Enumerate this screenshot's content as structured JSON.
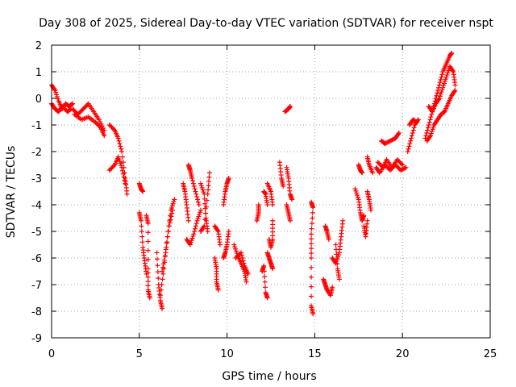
{
  "chart_data": {
    "type": "scatter",
    "title": "Day 308 of 2025, Sidereal Day-to-day VTEC variation (SDTVAR) for receiver nspt",
    "xlabel": "GPS time / hours",
    "ylabel": "SDTVAR / TECUs",
    "xlim": [
      0,
      25
    ],
    "ylim": [
      -9,
      2
    ],
    "xticks": [
      0,
      5,
      10,
      15,
      20,
      25
    ],
    "yticks": [
      -9,
      -8,
      -7,
      -6,
      -5,
      -4,
      -3,
      -2,
      -1,
      0,
      1,
      2
    ],
    "grid": true,
    "marker": "+",
    "color": "#ff0000",
    "series": [
      {
        "name": "SDTVAR",
        "segments": [
          [
            [
              0.0,
              0.5
            ],
            [
              0.2,
              0.3
            ],
            [
              0.4,
              -0.1
            ],
            [
              0.6,
              -0.4
            ],
            [
              0.8,
              -0.2
            ],
            [
              1.0,
              -0.3
            ],
            [
              1.2,
              -0.2
            ]
          ],
          [
            [
              0.0,
              -0.2
            ],
            [
              0.2,
              -0.4
            ],
            [
              0.4,
              -0.5
            ],
            [
              0.6,
              -0.3
            ],
            [
              0.9,
              -0.5
            ],
            [
              1.1,
              -0.4
            ]
          ],
          [
            [
              1.2,
              -0.4
            ],
            [
              1.5,
              -0.6
            ],
            [
              1.8,
              -0.4
            ],
            [
              2.1,
              -0.2
            ],
            [
              2.4,
              -0.5
            ],
            [
              2.7,
              -0.8
            ],
            [
              3.0,
              -1.2
            ]
          ],
          [
            [
              1.3,
              -0.6
            ],
            [
              1.7,
              -0.8
            ],
            [
              2.1,
              -0.7
            ],
            [
              2.5,
              -0.9
            ],
            [
              2.8,
              -1.1
            ],
            [
              3.0,
              -1.4
            ]
          ],
          [
            [
              3.3,
              -1.0
            ],
            [
              3.6,
              -1.2
            ],
            [
              3.8,
              -1.5
            ],
            [
              4.0,
              -2.0
            ],
            [
              4.2,
              -3.0
            ],
            [
              4.3,
              -3.6
            ]
          ],
          [
            [
              3.3,
              -2.7
            ],
            [
              3.6,
              -2.5
            ],
            [
              3.8,
              -2.2
            ],
            [
              4.0,
              -2.6
            ],
            [
              4.2,
              -3.2
            ]
          ],
          [
            [
              5.0,
              -3.2
            ],
            [
              5.1,
              -3.4
            ],
            [
              5.2,
              -3.5
            ]
          ],
          [
            [
              5.0,
              -4.3
            ],
            [
              5.1,
              -4.6
            ],
            [
              5.2,
              -5.6
            ],
            [
              5.3,
              -6.1
            ],
            [
              5.4,
              -6.6
            ]
          ],
          [
            [
              5.4,
              -4.4
            ],
            [
              5.5,
              -4.7
            ],
            [
              5.5,
              -6.4
            ],
            [
              5.5,
              -7.2
            ],
            [
              5.6,
              -7.5
            ]
          ],
          [
            [
              6.0,
              -5.8
            ],
            [
              6.1,
              -7.0
            ],
            [
              6.2,
              -7.6
            ],
            [
              6.3,
              -7.9
            ]
          ],
          [
            [
              6.2,
              -7.4
            ],
            [
              6.4,
              -6.4
            ],
            [
              6.6,
              -5.2
            ],
            [
              6.8,
              -4.2
            ],
            [
              7.0,
              -3.8
            ]
          ],
          [
            [
              6.3,
              -6.5
            ],
            [
              6.5,
              -5.8
            ],
            [
              6.7,
              -4.8
            ],
            [
              6.9,
              -4.2
            ]
          ],
          [
            [
              7.5,
              -3.2
            ],
            [
              7.6,
              -3.5
            ],
            [
              7.7,
              -4.0
            ],
            [
              7.8,
              -4.6
            ]
          ],
          [
            [
              7.8,
              -2.5
            ],
            [
              7.9,
              -2.7
            ],
            [
              8.0,
              -3.0
            ],
            [
              8.2,
              -3.5
            ],
            [
              8.4,
              -4.0
            ]
          ],
          [
            [
              7.7,
              -5.3
            ],
            [
              7.9,
              -5.5
            ],
            [
              8.1,
              -5.1
            ],
            [
              8.3,
              -4.6
            ],
            [
              8.5,
              -4.2
            ]
          ],
          [
            [
              8.5,
              -5.0
            ],
            [
              8.7,
              -4.8
            ],
            [
              8.9,
              -3.6
            ],
            [
              9.0,
              -2.8
            ]
          ],
          [
            [
              8.5,
              -3.2
            ],
            [
              8.7,
              -3.6
            ],
            [
              8.8,
              -4.5
            ],
            [
              8.9,
              -5.0
            ]
          ],
          [
            [
              9.3,
              -4.8
            ],
            [
              9.5,
              -5.0
            ],
            [
              9.6,
              -5.5
            ]
          ],
          [
            [
              9.3,
              -6.0
            ],
            [
              9.4,
              -6.4
            ],
            [
              9.4,
              -6.9
            ],
            [
              9.5,
              -7.2
            ]
          ],
          [
            [
              9.8,
              -4.0
            ],
            [
              9.9,
              -3.5
            ],
            [
              10.0,
              -3.2
            ],
            [
              10.1,
              -3.0
            ]
          ],
          [
            [
              9.8,
              -6.0
            ],
            [
              9.9,
              -5.8
            ],
            [
              10.0,
              -5.5
            ],
            [
              10.1,
              -5.0
            ]
          ],
          [
            [
              10.4,
              -5.5
            ],
            [
              10.6,
              -5.9
            ],
            [
              10.8,
              -6.2
            ],
            [
              11.0,
              -6.5
            ],
            [
              11.1,
              -6.9
            ]
          ],
          [
            [
              10.5,
              -6.0
            ],
            [
              10.8,
              -5.8
            ],
            [
              11.0,
              -6.3
            ],
            [
              11.2,
              -6.6
            ]
          ],
          [
            [
              11.7,
              -4.6
            ],
            [
              11.8,
              -4.3
            ],
            [
              11.8,
              -4.0
            ]
          ],
          [
            [
              12.1,
              -3.5
            ],
            [
              12.2,
              -3.6
            ],
            [
              12.3,
              -4.0
            ]
          ],
          [
            [
              12.0,
              -6.5
            ],
            [
              12.1,
              -6.3
            ],
            [
              12.2,
              -7.3
            ],
            [
              12.3,
              -7.5
            ]
          ],
          [
            [
              12.3,
              -5.8
            ],
            [
              12.4,
              -6.0
            ],
            [
              12.5,
              -6.2
            ],
            [
              12.6,
              -6.4
            ]
          ],
          [
            [
              12.4,
              -5.3
            ],
            [
              12.5,
              -5.6
            ],
            [
              12.6,
              -5.3
            ],
            [
              12.6,
              -4.6
            ]
          ],
          [
            [
              12.3,
              -3.2
            ],
            [
              12.5,
              -3.5
            ],
            [
              12.6,
              -4.0
            ]
          ],
          [
            [
              13.0,
              -2.4
            ],
            [
              13.1,
              -3.0
            ],
            [
              13.2,
              -3.3
            ]
          ],
          [
            [
              13.3,
              -0.5
            ],
            [
              13.5,
              -0.4
            ],
            [
              13.6,
              -0.3
            ]
          ],
          [
            [
              13.4,
              -2.6
            ],
            [
              13.5,
              -3.0
            ],
            [
              13.6,
              -3.6
            ],
            [
              13.7,
              -3.8
            ]
          ],
          [
            [
              13.4,
              -4.0
            ],
            [
              13.5,
              -4.3
            ],
            [
              13.6,
              -4.6
            ]
          ],
          [
            [
              14.8,
              -3.9
            ],
            [
              14.9,
              -4.1
            ],
            [
              14.8,
              -5.1
            ],
            [
              14.8,
              -6.0
            ],
            [
              14.8,
              -7.8
            ],
            [
              14.9,
              -8.1
            ]
          ],
          [
            [
              15.5,
              -6.8
            ],
            [
              15.6,
              -7.0
            ],
            [
              15.7,
              -7.2
            ],
            [
              15.9,
              -7.4
            ],
            [
              16.0,
              -7.1
            ]
          ],
          [
            [
              15.6,
              -4.8
            ],
            [
              15.7,
              -5.0
            ],
            [
              15.8,
              -5.3
            ]
          ],
          [
            [
              16.0,
              -6.0
            ],
            [
              16.2,
              -6.2
            ],
            [
              16.4,
              -5.8
            ],
            [
              16.5,
              -5.2
            ],
            [
              16.6,
              -4.6
            ]
          ],
          [
            [
              16.2,
              -5.5
            ],
            [
              16.3,
              -6.4
            ],
            [
              16.4,
              -6.8
            ]
          ],
          [
            [
              17.3,
              -3.4
            ],
            [
              17.5,
              -3.8
            ],
            [
              17.6,
              -4.3
            ],
            [
              17.7,
              -4.6
            ],
            [
              17.8,
              -4.4
            ]
          ],
          [
            [
              17.5,
              -2.5
            ],
            [
              17.6,
              -2.7
            ],
            [
              17.7,
              -2.8
            ]
          ],
          [
            [
              17.8,
              -4.8
            ],
            [
              17.9,
              -5.2
            ],
            [
              18.0,
              -4.6
            ]
          ],
          [
            [
              18.0,
              -3.5
            ],
            [
              18.1,
              -3.8
            ],
            [
              18.2,
              -4.2
            ]
          ],
          [
            [
              18.0,
              -2.2
            ],
            [
              18.1,
              -2.5
            ],
            [
              18.3,
              -2.8
            ]
          ],
          [
            [
              18.5,
              -2.6
            ],
            [
              18.7,
              -2.8
            ],
            [
              19.0,
              -2.5
            ],
            [
              19.3,
              -2.7
            ],
            [
              19.6,
              -2.5
            ],
            [
              19.9,
              -2.7
            ],
            [
              20.2,
              -2.6
            ]
          ],
          [
            [
              18.6,
              -2.4
            ],
            [
              18.9,
              -2.6
            ],
            [
              19.1,
              -2.3
            ],
            [
              19.4,
              -2.6
            ],
            [
              19.7,
              -2.3
            ],
            [
              20.0,
              -2.5
            ]
          ],
          [
            [
              18.8,
              -1.6
            ],
            [
              19.0,
              -1.7
            ],
            [
              19.3,
              -1.6
            ],
            [
              19.6,
              -1.5
            ],
            [
              19.8,
              -1.3
            ]
          ],
          [
            [
              20.3,
              -2.0
            ],
            [
              20.5,
              -1.5
            ],
            [
              20.7,
              -1.0
            ],
            [
              20.9,
              -0.8
            ]
          ],
          [
            [
              20.4,
              -1.0
            ],
            [
              20.6,
              -0.8
            ],
            [
              20.8,
              -0.9
            ]
          ],
          [
            [
              21.3,
              -1.5
            ],
            [
              21.5,
              -1.0
            ],
            [
              21.7,
              -0.5
            ],
            [
              21.9,
              0.0
            ],
            [
              22.1,
              0.5
            ],
            [
              22.3,
              1.0
            ],
            [
              22.5,
              1.3
            ],
            [
              22.7,
              1.6
            ],
            [
              22.8,
              1.7
            ]
          ],
          [
            [
              21.4,
              -1.6
            ],
            [
              21.6,
              -1.4
            ],
            [
              21.8,
              -1.0
            ],
            [
              22.0,
              -0.8
            ],
            [
              22.2,
              -0.6
            ],
            [
              22.4,
              -0.5
            ],
            [
              22.6,
              -0.2
            ],
            [
              22.8,
              0.1
            ],
            [
              23.0,
              0.3
            ]
          ],
          [
            [
              21.5,
              -0.3
            ],
            [
              21.7,
              -0.5
            ],
            [
              21.9,
              -0.2
            ],
            [
              22.1,
              0.0
            ],
            [
              22.3,
              0.4
            ],
            [
              22.5,
              0.8
            ],
            [
              22.7,
              1.2
            ],
            [
              22.9,
              1.0
            ],
            [
              23.0,
              0.5
            ]
          ]
        ]
      }
    ]
  }
}
